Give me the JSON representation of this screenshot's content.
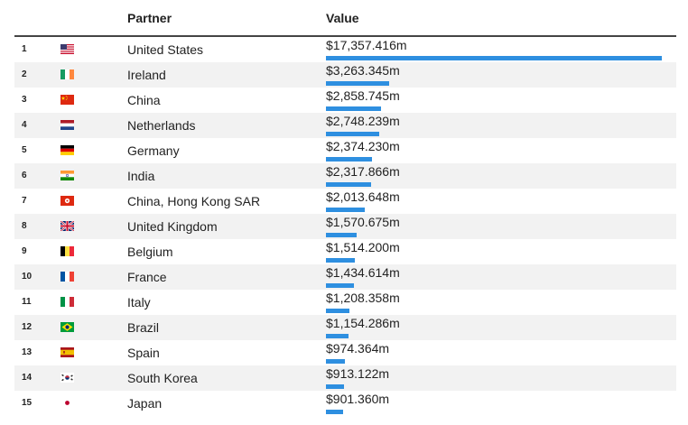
{
  "header": {
    "partner": "Partner",
    "value": "Value"
  },
  "colors": {
    "bar": "#2e8fe0"
  },
  "chart_data": {
    "type": "bar",
    "xlabel": "Partner",
    "ylabel": "Value",
    "categories": [
      "United States",
      "Ireland",
      "China",
      "Netherlands",
      "Germany",
      "India",
      "China, Hong Kong SAR",
      "United Kingdom",
      "Belgium",
      "France",
      "Italy",
      "Brazil",
      "Spain",
      "South Korea",
      "Japan"
    ],
    "values": [
      17357.416,
      3263.345,
      2858.745,
      2748.239,
      2374.23,
      2317.866,
      2013.648,
      1570.675,
      1514.2,
      1434.614,
      1208.358,
      1154.286,
      974.364,
      913.122,
      901.36
    ]
  },
  "rows": [
    {
      "rank": "1",
      "partner": "United States",
      "value": "$17,357.416m",
      "flag": "us-flag-icon"
    },
    {
      "rank": "2",
      "partner": "Ireland",
      "value": "$3,263.345m",
      "flag": "ie-flag-icon"
    },
    {
      "rank": "3",
      "partner": "China",
      "value": "$2,858.745m",
      "flag": "cn-flag-icon"
    },
    {
      "rank": "4",
      "partner": "Netherlands",
      "value": "$2,748.239m",
      "flag": "nl-flag-icon"
    },
    {
      "rank": "5",
      "partner": "Germany",
      "value": "$2,374.230m",
      "flag": "de-flag-icon"
    },
    {
      "rank": "6",
      "partner": "India",
      "value": "$2,317.866m",
      "flag": "in-flag-icon"
    },
    {
      "rank": "7",
      "partner": "China, Hong Kong SAR",
      "value": "$2,013.648m",
      "flag": "hk-flag-icon"
    },
    {
      "rank": "8",
      "partner": "United Kingdom",
      "value": "$1,570.675m",
      "flag": "gb-flag-icon"
    },
    {
      "rank": "9",
      "partner": "Belgium",
      "value": "$1,514.200m",
      "flag": "be-flag-icon"
    },
    {
      "rank": "10",
      "partner": "France",
      "value": "$1,434.614m",
      "flag": "fr-flag-icon"
    },
    {
      "rank": "11",
      "partner": "Italy",
      "value": "$1,208.358m",
      "flag": "it-flag-icon"
    },
    {
      "rank": "12",
      "partner": "Brazil",
      "value": "$1,154.286m",
      "flag": "br-flag-icon"
    },
    {
      "rank": "13",
      "partner": "Spain",
      "value": "$974.364m",
      "flag": "es-flag-icon"
    },
    {
      "rank": "14",
      "partner": "South Korea",
      "value": "$913.122m",
      "flag": "kr-flag-icon"
    },
    {
      "rank": "15",
      "partner": "Japan",
      "value": "$901.360m",
      "flag": "jp-flag-icon"
    }
  ]
}
